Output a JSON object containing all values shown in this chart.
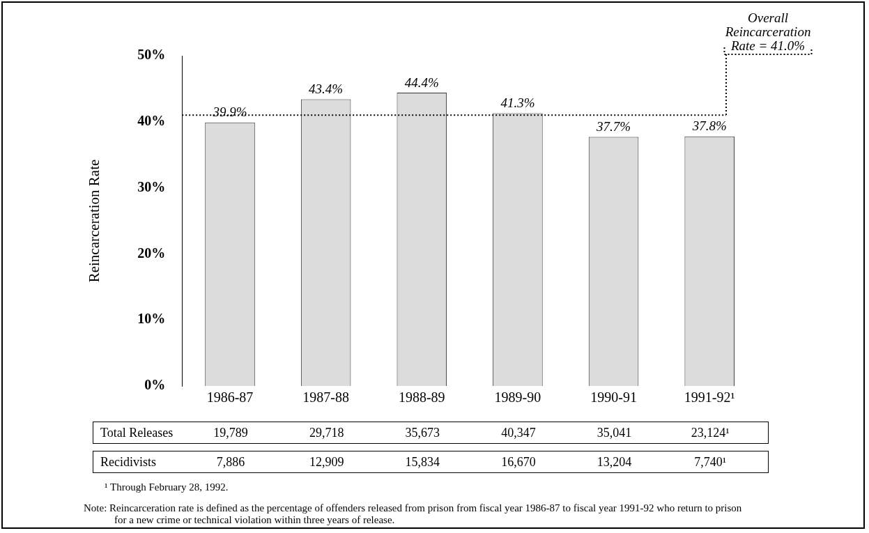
{
  "chart_data": {
    "type": "bar",
    "ylabel": "Reincarceration Rate",
    "categories": [
      "1986-87",
      "1987-88",
      "1988-89",
      "1989-90",
      "1990-91",
      "1991-92¹"
    ],
    "values": [
      39.9,
      43.4,
      44.4,
      41.3,
      37.7,
      37.8
    ],
    "value_labels": [
      "39.9%",
      "43.4%",
      "44.4%",
      "41.3%",
      "37.7%",
      "37.8%"
    ],
    "color": "#dcdcdc",
    "ylim": [
      0,
      50
    ],
    "yticks": [
      {
        "value": 0,
        "label": "0%"
      },
      {
        "value": 10,
        "label": "10%"
      },
      {
        "value": 20,
        "label": "20%"
      },
      {
        "value": 30,
        "label": "30%"
      },
      {
        "value": 40,
        "label": "40%"
      },
      {
        "value": 50,
        "label": "50%"
      }
    ],
    "grid": false,
    "legend": false,
    "ref_lines": [
      {
        "axis": "y",
        "value": 41.0,
        "label": "Overall Reincarceration Rate = 41.0%",
        "line_style": "dotted",
        "color": "#000000"
      }
    ],
    "annotations": [
      "Total Releases",
      "19,789",
      "29,718",
      "35,673",
      "40,347",
      "35,041",
      "23,124¹",
      "Recidivists",
      "7,886",
      "12,909",
      "15,834",
      "16,670",
      "13,204",
      "7,740¹",
      "¹ Through February 28, 1992.",
      "Note:  Reincarceration rate is defined as the percentage of offenders released from prison from fiscal year 1986-87 to fiscal year 1991-92 who return to prison for a new crime or technical violation within three years of release."
    ]
  }
}
